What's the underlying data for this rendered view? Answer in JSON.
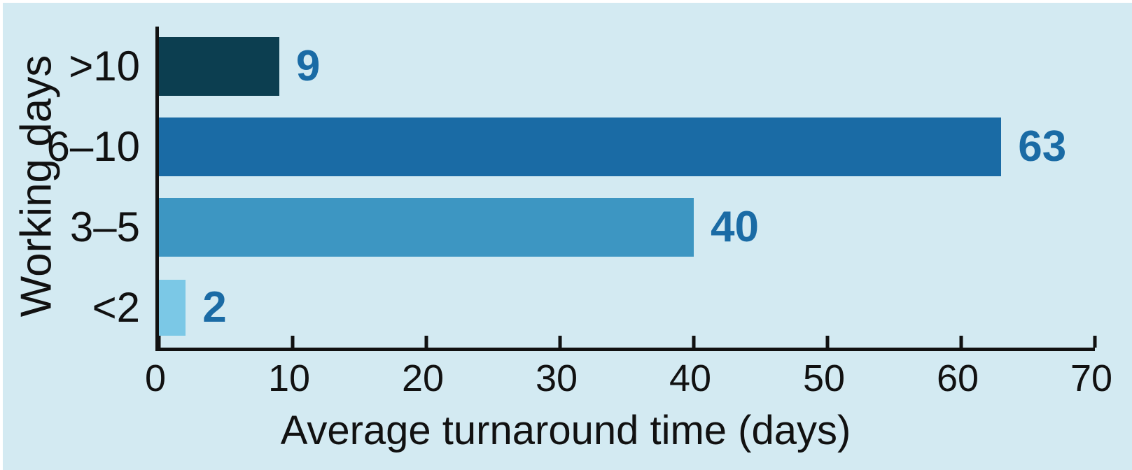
{
  "figure": {
    "background_color": "#d3eaf2",
    "page_background": "#ffffff",
    "axis_color": "#111111",
    "text_color": "#111111"
  },
  "chart_data": {
    "type": "bar",
    "orientation": "horizontal",
    "title": "",
    "xlabel": "Average turnaround time (days)",
    "ylabel": "Working days",
    "categories": [
      ">10",
      "6–10",
      "3–5",
      "<2"
    ],
    "values": [
      9,
      63,
      40,
      2
    ],
    "bar_colors": [
      "#0c3e50",
      "#1a6ba5",
      "#3d96c2",
      "#7bc8e6"
    ],
    "value_label_color": "#1a6ba5",
    "xlim": [
      0,
      70
    ],
    "x_ticks": [
      "0",
      "10",
      "20",
      "30",
      "40",
      "50",
      "60",
      "70"
    ],
    "grid": false,
    "legend": "none"
  }
}
